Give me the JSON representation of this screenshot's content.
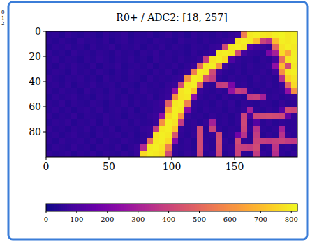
{
  "chart_data": {
    "type": "heatmap",
    "title": "R0+ / ADC2: [18, 257]",
    "annotations": [
      "0",
      "1",
      "2"
    ],
    "xlim": [
      0,
      200
    ],
    "ylim": [
      0,
      100
    ],
    "xticks": [
      0,
      50,
      100,
      150
    ],
    "yticks": [
      0,
      20,
      40,
      60,
      80
    ],
    "color": "plasma",
    "colorbar": {
      "lim": [
        0,
        820
      ],
      "ticks": [
        0,
        100,
        200,
        300,
        400,
        500,
        600,
        700,
        800
      ]
    },
    "values": [
      [
        45,
        52,
        38,
        60,
        47,
        41,
        55,
        49,
        36,
        58,
        44,
        50,
        62,
        39,
        53,
        46,
        57,
        40,
        48,
        61,
        43,
        54,
        37,
        59,
        45,
        51,
        42,
        56,
        48,
        60,
        70,
        560,
        790,
        800,
        790,
        780,
        800,
        810,
        790,
        800
      ],
      [
        50,
        41,
        57,
        46,
        39,
        62,
        48,
        53,
        44,
        58,
        37,
        51,
        60,
        43,
        55,
        47,
        40,
        59,
        52,
        45,
        38,
        61,
        49,
        54,
        42,
        57,
        46,
        50,
        63,
        72,
        780,
        800,
        790,
        700,
        400,
        350,
        700,
        800,
        790,
        800
      ],
      [
        39,
        55,
        48,
        61,
        44,
        52,
        37,
        58,
        46,
        50,
        63,
        41,
        54,
        47,
        59,
        38,
        53,
        45,
        60,
        42,
        56,
        49,
        40,
        57,
        51,
        44,
        62,
        68,
        420,
        790,
        800,
        780,
        120,
        80,
        70,
        60,
        500,
        780,
        800,
        790
      ],
      [
        58,
        43,
        50,
        37,
        62,
        47,
        54,
        41,
        56,
        49,
        39,
        60,
        45,
        52,
        38,
        57,
        48,
        63,
        42,
        55,
        46,
        51,
        40,
        59,
        44,
        53,
        66,
        790,
        800,
        790,
        420,
        90,
        60,
        55,
        50,
        200,
        300,
        760,
        650,
        800
      ],
      [
        47,
        60,
        41,
        53,
        49,
        38,
        57,
        44,
        62,
        51,
        40,
        55,
        46,
        59,
        43,
        50,
        37,
        61,
        48,
        54,
        42,
        58,
        45,
        52,
        64,
        380,
        780,
        800,
        760,
        110,
        58,
        45,
        52,
        40,
        56,
        48,
        90,
        520,
        780,
        800
      ],
      [
        52,
        39,
        56,
        45,
        61,
        48,
        42,
        59,
        37,
        54,
        47,
        63,
        40,
        51,
        57,
        44,
        60,
        38,
        53,
        46,
        58,
        41,
        55,
        70,
        520,
        790,
        800,
        610,
        80,
        49,
        55,
        42,
        60,
        47,
        51,
        62,
        250,
        700,
        420,
        790
      ],
      [
        44,
        57,
        50,
        38,
        62,
        46,
        53,
        41,
        59,
        48,
        36,
        55,
        43,
        61,
        49,
        52,
        40,
        58,
        45,
        63,
        39,
        54,
        68,
        560,
        800,
        790,
        420,
        75,
        52,
        44,
        58,
        41,
        55,
        49,
        60,
        46,
        80,
        600,
        790,
        800
      ],
      [
        61,
        47,
        40,
        55,
        49,
        58,
        43,
        52,
        37,
        60,
        46,
        54,
        41,
        57,
        50,
        38,
        62,
        45,
        53,
        48,
        59,
        66,
        610,
        800,
        790,
        450,
        380,
        55,
        43,
        58,
        47,
        52,
        40,
        61,
        49,
        56,
        44,
        350,
        740,
        780
      ],
      [
        49,
        56,
        42,
        60,
        38,
        53,
        47,
        62,
        44,
        51,
        57,
        40,
        55,
        48,
        36,
        59,
        46,
        52,
        43,
        61,
        69,
        430,
        790,
        800,
        480,
        60,
        50,
        380,
        390,
        200,
        50,
        58,
        41,
        54,
        47,
        62,
        45,
        70,
        500,
        760
      ],
      [
        55,
        42,
        59,
        47,
        51,
        38,
        63,
        45,
        54,
        40,
        58,
        49,
        37,
        56,
        44,
        61,
        50,
        46,
        53,
        64,
        250,
        780,
        800,
        720,
        70,
        52,
        44,
        59,
        48,
        260,
        390,
        370,
        55,
        40,
        57,
        46,
        52,
        60,
        250,
        600
      ],
      [
        40,
        58,
        46,
        53,
        62,
        44,
        51,
        37,
        57,
        48,
        60,
        43,
        55,
        39,
        52,
        47,
        63,
        41,
        56,
        70,
        600,
        780,
        790,
        250,
        58,
        45,
        53,
        40,
        61,
        48,
        55,
        43,
        380,
        390,
        300,
        50,
        59,
        44,
        56,
        62
      ],
      [
        53,
        45,
        61,
        39,
        56,
        48,
        42,
        59,
        50,
        37,
        54,
        46,
        62,
        41,
        57,
        44,
        51,
        60,
        72,
        480,
        790,
        800,
        560,
        60,
        47,
        53,
        41,
        58,
        45,
        62,
        38,
        55,
        49,
        43,
        57,
        52,
        40,
        61,
        46,
        54
      ],
      [
        47,
        60,
        43,
        55,
        38,
        52,
        58,
        45,
        61,
        40,
        49,
        56,
        44,
        59,
        37,
        53,
        48,
        62,
        65,
        650,
        800,
        790,
        230,
        56,
        42,
        59,
        48,
        53,
        40,
        57,
        45,
        61,
        300,
        50,
        44,
        58,
        47,
        120,
        420,
        410
      ],
      [
        58,
        41,
        52,
        46,
        63,
        39,
        55,
        49,
        43,
        60,
        47,
        54,
        37,
        57,
        50,
        44,
        61,
        70,
        250,
        760,
        800,
        620,
        66,
        49,
        55,
        42,
        60,
        46,
        53,
        39,
        58,
        400,
        90,
        410,
        420,
        430,
        420,
        410,
        150,
        55
      ],
      [
        43,
        56,
        49,
        61,
        40,
        53,
        47,
        58,
        38,
        62,
        45,
        51,
        57,
        42,
        59,
        48,
        54,
        68,
        600,
        800,
        780,
        380,
        50,
        58,
        44,
        61,
        300,
        47,
        55,
        41,
        59,
        410,
        52,
        120,
        46,
        60,
        43,
        57,
        49,
        53
      ],
      [
        60,
        44,
        52,
        39,
        57,
        48,
        62,
        41,
        55,
        46,
        59,
        37,
        53,
        50,
        43,
        61,
        66,
        380,
        790,
        800,
        720,
        63,
        48,
        56,
        420,
        45,
        400,
        58,
        42,
        54,
        47,
        400,
        60,
        350,
        51,
        44,
        57,
        300,
        49,
        55
      ],
      [
        48,
        57,
        41,
        54,
        62,
        45,
        50,
        38,
        59,
        47,
        53,
        60,
        43,
        56,
        40,
        52,
        64,
        780,
        800,
        790,
        450,
        57,
        44,
        61,
        420,
        50,
        58,
        420,
        46,
        55,
        180,
        350,
        48,
        380,
        42,
        59,
        47,
        350,
        61,
        52
      ],
      [
        54,
        40,
        61,
        47,
        52,
        58,
        43,
        56,
        39,
        60,
        49,
        45,
        62,
        51,
        44,
        57,
        520,
        790,
        800,
        760,
        230,
        46,
        59,
        41,
        420,
        55,
        48,
        430,
        60,
        43,
        420,
        57,
        50,
        400,
        390,
        380,
        390,
        400,
        380,
        370
      ],
      [
        41,
        59,
        50,
        44,
        63,
        47,
        55,
        38,
        57,
        52,
        46,
        61,
        40,
        53,
        68,
        330,
        790,
        800,
        780,
        560,
        62,
        49,
        56,
        43,
        420,
        60,
        47,
        420,
        53,
        58,
        400,
        390,
        380,
        420,
        45,
        56,
        360,
        51,
        60,
        44
      ],
      [
        57,
        46,
        52,
        60,
        39,
        55,
        48,
        62,
        43,
        58,
        50,
        45,
        61,
        47,
        66,
        760,
        800,
        790,
        770,
        420,
        58,
        44,
        61,
        50,
        410,
        47,
        59,
        410,
        42,
        56,
        400,
        53,
        45,
        380,
        60,
        48,
        340,
        55,
        43,
        58
      ]
    ]
  }
}
